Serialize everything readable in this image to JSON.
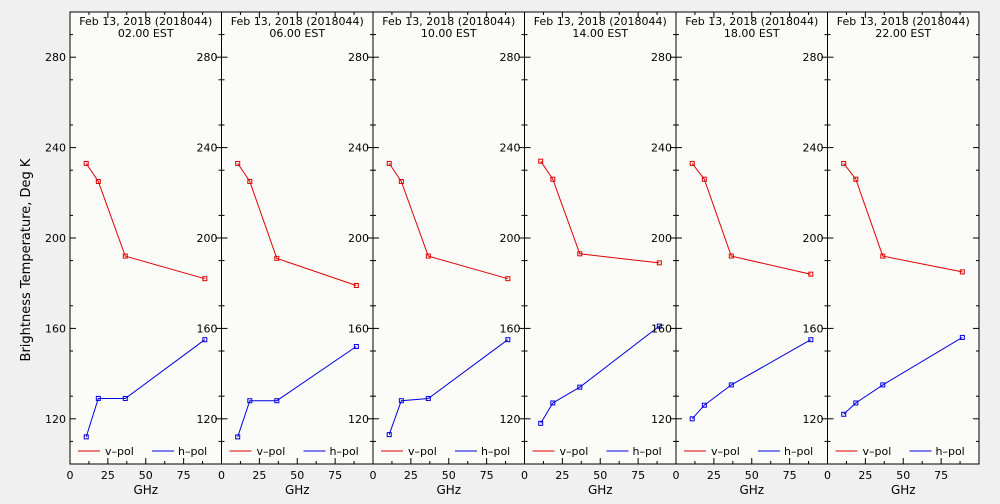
{
  "figure": {
    "ylabel": "Brightness Temperature, Deg K",
    "xlabel": "GHz"
  },
  "colors": {
    "background": "#f0f0f0",
    "panel_bg": "#fbfbf8",
    "axis": "#000000",
    "v_pol": "#e00000",
    "h_pol": "#0000e0"
  },
  "legend": {
    "v_label": "v–pol",
    "h_label": "h–pol",
    "placement": "bottom"
  },
  "chart_data": [
    {
      "type": "line",
      "title": "Feb 13, 2018 (2018044)",
      "subtitle": "02.00 EST",
      "xlabel": "GHz",
      "ylabel": "Brightness Temperature, Deg K",
      "xlim": [
        0,
        100
      ],
      "ylim": [
        100,
        300
      ],
      "xticks": [
        0,
        25,
        50,
        75
      ],
      "yticks": [
        120,
        160,
        200,
        240,
        280
      ],
      "series": [
        {
          "name": "v–pol",
          "x": [
            10.7,
            18.7,
            36.5,
            89.0
          ],
          "y": [
            233,
            225,
            192,
            182
          ]
        },
        {
          "name": "h–pol",
          "x": [
            10.7,
            18.7,
            36.5,
            89.0
          ],
          "y": [
            112,
            129,
            129,
            155
          ]
        }
      ]
    },
    {
      "type": "line",
      "title": "Feb 13, 2018 (2018044)",
      "subtitle": "06.00 EST",
      "xlabel": "GHz",
      "ylabel": "Brightness Temperature, Deg K",
      "xlim": [
        0,
        100
      ],
      "ylim": [
        100,
        300
      ],
      "xticks": [
        0,
        25,
        50,
        75
      ],
      "yticks": [
        120,
        160,
        200,
        240,
        280
      ],
      "series": [
        {
          "name": "v–pol",
          "x": [
            10.7,
            18.7,
            36.5,
            89.0
          ],
          "y": [
            233,
            225,
            191,
            179
          ]
        },
        {
          "name": "h–pol",
          "x": [
            10.7,
            18.7,
            36.5,
            89.0
          ],
          "y": [
            112,
            128,
            128,
            152
          ]
        }
      ]
    },
    {
      "type": "line",
      "title": "Feb 13, 2018 (2018044)",
      "subtitle": "10.00 EST",
      "xlabel": "GHz",
      "ylabel": "Brightness Temperature, Deg K",
      "xlim": [
        0,
        100
      ],
      "ylim": [
        100,
        300
      ],
      "xticks": [
        0,
        25,
        50,
        75
      ],
      "yticks": [
        120,
        160,
        200,
        240,
        280
      ],
      "series": [
        {
          "name": "v–pol",
          "x": [
            10.7,
            18.7,
            36.5,
            89.0
          ],
          "y": [
            233,
            225,
            192,
            182
          ]
        },
        {
          "name": "h–pol",
          "x": [
            10.7,
            18.7,
            36.5,
            89.0
          ],
          "y": [
            113,
            128,
            129,
            155
          ]
        }
      ]
    },
    {
      "type": "line",
      "title": "Feb 13, 2018 (2018044)",
      "subtitle": "14.00 EST",
      "xlabel": "GHz",
      "ylabel": "Brightness Temperature, Deg K",
      "xlim": [
        0,
        100
      ],
      "ylim": [
        100,
        300
      ],
      "xticks": [
        0,
        25,
        50,
        75
      ],
      "yticks": [
        120,
        160,
        200,
        240,
        280
      ],
      "series": [
        {
          "name": "v–pol",
          "x": [
            10.7,
            18.7,
            36.5,
            89.0
          ],
          "y": [
            234,
            226,
            193,
            189
          ]
        },
        {
          "name": "h–pol",
          "x": [
            10.7,
            18.7,
            36.5,
            89.0
          ],
          "y": [
            118,
            127,
            134,
            161
          ]
        }
      ]
    },
    {
      "type": "line",
      "title": "Feb 13, 2018 (2018044)",
      "subtitle": "18.00 EST",
      "xlabel": "GHz",
      "ylabel": "Brightness Temperature, Deg K",
      "xlim": [
        0,
        100
      ],
      "ylim": [
        100,
        300
      ],
      "xticks": [
        0,
        25,
        50,
        75
      ],
      "yticks": [
        120,
        160,
        200,
        240,
        280
      ],
      "series": [
        {
          "name": "v–pol",
          "x": [
            10.7,
            18.7,
            36.5,
            89.0
          ],
          "y": [
            233,
            226,
            192,
            184
          ]
        },
        {
          "name": "h–pol",
          "x": [
            10.7,
            18.7,
            36.5,
            89.0
          ],
          "y": [
            120,
            126,
            135,
            155
          ]
        }
      ]
    },
    {
      "type": "line",
      "title": "Feb 13, 2018 (2018044)",
      "subtitle": "22.00 EST",
      "xlabel": "GHz",
      "ylabel": "Brightness Temperature, Deg K",
      "xlim": [
        0,
        100
      ],
      "ylim": [
        100,
        300
      ],
      "xticks": [
        0,
        25,
        50,
        75
      ],
      "yticks": [
        120,
        160,
        200,
        240,
        280
      ],
      "series": [
        {
          "name": "v–pol",
          "x": [
            10.7,
            18.7,
            36.5,
            89.0
          ],
          "y": [
            233,
            226,
            192,
            185
          ]
        },
        {
          "name": "h–pol",
          "x": [
            10.7,
            18.7,
            36.5,
            89.0
          ],
          "y": [
            122,
            127,
            135,
            156
          ]
        }
      ]
    }
  ]
}
